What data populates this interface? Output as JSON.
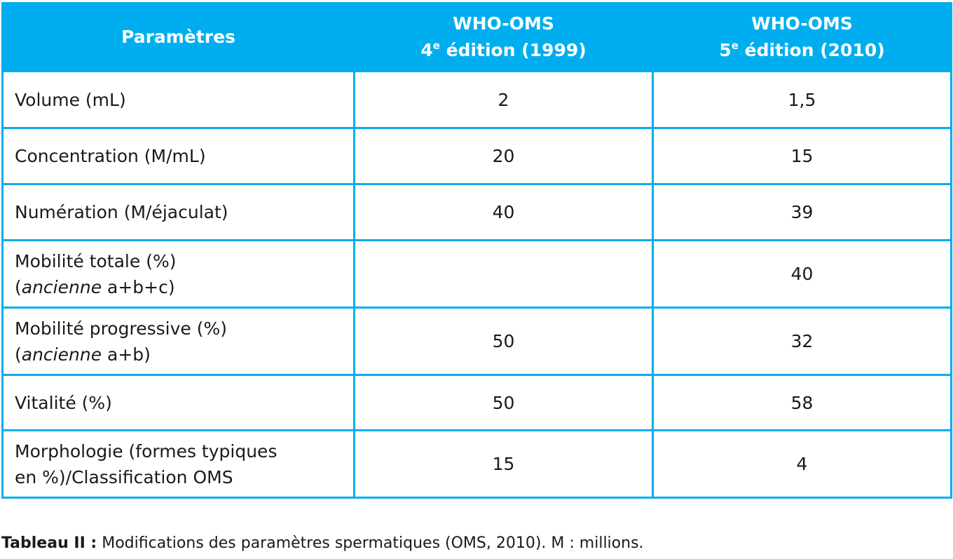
{
  "table": {
    "headers": {
      "param": "Paramètres",
      "ed4": {
        "line1": "WHO-OMS",
        "num": "4",
        "sup": "e",
        "rest": " édition (1999)"
      },
      "ed5": {
        "line1": "WHO-OMS",
        "num": "5",
        "sup": "e",
        "rest": " édition (2010)"
      }
    },
    "rows": [
      {
        "param": "Volume (mL)",
        "ed4": "2",
        "ed5": "1,5"
      },
      {
        "param": "Concentration (M/mL)",
        "ed4": "20",
        "ed5": "15"
      },
      {
        "param": "Numération (M/éjaculat)",
        "ed4": "40",
        "ed5": "39"
      },
      {
        "param_line1": "Mobilité totale (%)",
        "param_open": "(",
        "param_italic": "ancienne",
        "param_close": " a+b+c)",
        "ed4": "",
        "ed5": "40"
      },
      {
        "param_line1": "Mobilité progressive (%)",
        "param_open": "(",
        "param_italic": "ancienne",
        "param_close": " a+b)",
        "ed4": "50",
        "ed5": "32"
      },
      {
        "param": "Vitalité (%)",
        "ed4": "50",
        "ed5": "58"
      },
      {
        "param_line1": "Morphologie (formes typiques",
        "param_line2": "en %)/Classification OMS",
        "ed4": "15",
        "ed5": "4"
      }
    ]
  },
  "caption": {
    "label": "Tableau II :",
    "text": " Modifications des paramètres spermatiques (OMS, 2010). M : millions."
  }
}
